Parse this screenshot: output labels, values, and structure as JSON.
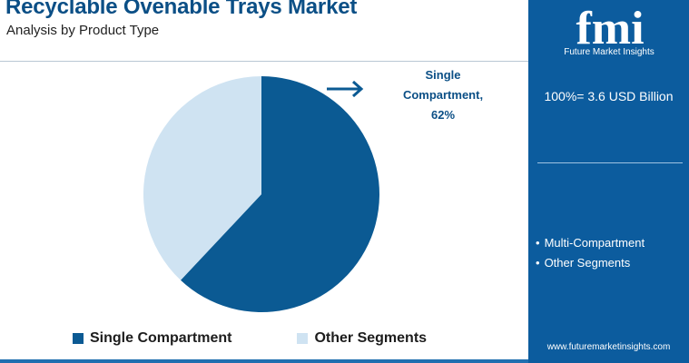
{
  "header": {
    "title": "Recyclable Ovenable Trays Market",
    "subtitle": "Analysis by Product Type"
  },
  "chart_data": {
    "type": "pie",
    "slices": [
      {
        "label": "Single Compartment",
        "value": 62,
        "color": "#0b5a93"
      },
      {
        "label": "Other Segments",
        "value": 38,
        "color": "#cfe3f2"
      }
    ],
    "callout": {
      "line1": "Single",
      "line2": "Compartment,",
      "line3": "62%"
    },
    "legend": [
      "Single Compartment",
      "Other Segments"
    ],
    "legend_position": "bottom"
  },
  "panel": {
    "logo_text": "fmi",
    "logo_tagline": "Future Market Insights",
    "total": "100%= 3.6 USD Billion",
    "segments": [
      "Multi-Compartment",
      "Other Segments"
    ],
    "website": "www.futuremarketinsights.com"
  },
  "colors": {
    "primary": "#0b5a93",
    "secondary": "#cfe3f2",
    "panel_bg": "#0c5c9e",
    "title": "#0b4f86"
  }
}
